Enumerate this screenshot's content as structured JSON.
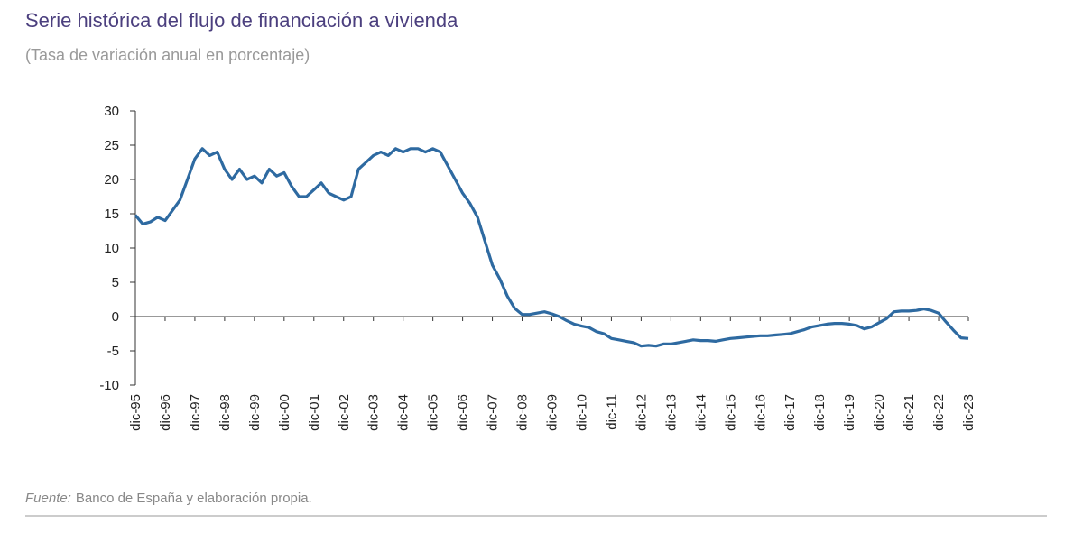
{
  "chart_data": {
    "type": "line",
    "title": "Serie histórica del flujo de financiación a vivienda",
    "subtitle": "(Tasa de variación anual en porcentaje)",
    "source_label": "Fuente:",
    "source": "Banco de España y elaboración propia.",
    "categories": [
      "dic-95",
      null,
      null,
      null,
      "dic-96",
      null,
      null,
      null,
      "dic-97",
      null,
      null,
      null,
      "dic-98",
      null,
      null,
      null,
      "dic-99",
      null,
      null,
      null,
      "dic-00",
      null,
      null,
      null,
      "dic-01",
      null,
      null,
      null,
      "dic-02",
      null,
      null,
      null,
      "dic-03",
      null,
      null,
      null,
      "dic-04",
      null,
      null,
      null,
      "dic-05",
      null,
      null,
      null,
      "dic-06",
      null,
      null,
      null,
      "dic-07",
      null,
      null,
      null,
      "dic-08",
      null,
      null,
      null,
      "dic-09",
      null,
      null,
      null,
      "dic-10",
      null,
      null,
      null,
      "dic-11",
      null,
      null,
      null,
      "dic-12",
      null,
      null,
      null,
      "dic-13",
      null,
      null,
      null,
      "dic-14",
      null,
      null,
      null,
      "dic-15",
      null,
      null,
      null,
      "dic-16",
      null,
      null,
      null,
      "dic-17",
      null,
      null,
      null,
      "dic-18",
      null,
      null,
      null,
      "dic-19",
      null,
      null,
      null,
      "dic-20",
      null,
      null,
      null,
      "dic-21",
      null,
      null,
      null,
      "dic-22",
      null,
      null,
      null,
      "dic-23"
    ],
    "values": [
      14.8,
      13.5,
      13.8,
      14.5,
      14.0,
      15.5,
      17.0,
      20.0,
      23.0,
      24.5,
      23.5,
      24.0,
      21.5,
      20.0,
      21.5,
      20.0,
      20.5,
      19.5,
      21.5,
      20.5,
      21.0,
      19.0,
      17.5,
      17.5,
      18.5,
      19.5,
      18.0,
      17.5,
      17.0,
      17.5,
      21.5,
      22.5,
      23.5,
      24.0,
      23.5,
      24.5,
      24.0,
      24.5,
      24.5,
      24.0,
      24.5,
      24.0,
      22.0,
      20.0,
      18.0,
      16.5,
      14.5,
      11.0,
      7.5,
      5.5,
      3.0,
      1.2,
      0.3,
      0.3,
      0.5,
      0.7,
      0.4,
      0.0,
      -0.6,
      -1.1,
      -1.4,
      -1.6,
      -2.2,
      -2.5,
      -3.2,
      -3.4,
      -3.6,
      -3.8,
      -4.3,
      -4.2,
      -4.3,
      -4.0,
      -4.0,
      -3.8,
      -3.6,
      -3.4,
      -3.5,
      -3.5,
      -3.6,
      -3.4,
      -3.2,
      -3.1,
      -3.0,
      -2.9,
      -2.8,
      -2.8,
      -2.7,
      -2.6,
      -2.5,
      -2.2,
      -1.9,
      -1.5,
      -1.3,
      -1.1,
      -1.0,
      -1.0,
      -1.1,
      -1.3,
      -1.8,
      -1.5,
      -0.9,
      -0.3,
      0.7,
      0.8,
      0.8,
      0.9,
      1.1,
      0.9,
      0.5,
      -0.8,
      -2.0,
      -3.1,
      -3.2
    ],
    "color": "#2e6aa1",
    "ylim": [
      -10,
      30
    ],
    "yticks": [
      -10,
      -5,
      0,
      5,
      10,
      15,
      20,
      25,
      30
    ],
    "grid": false
  }
}
